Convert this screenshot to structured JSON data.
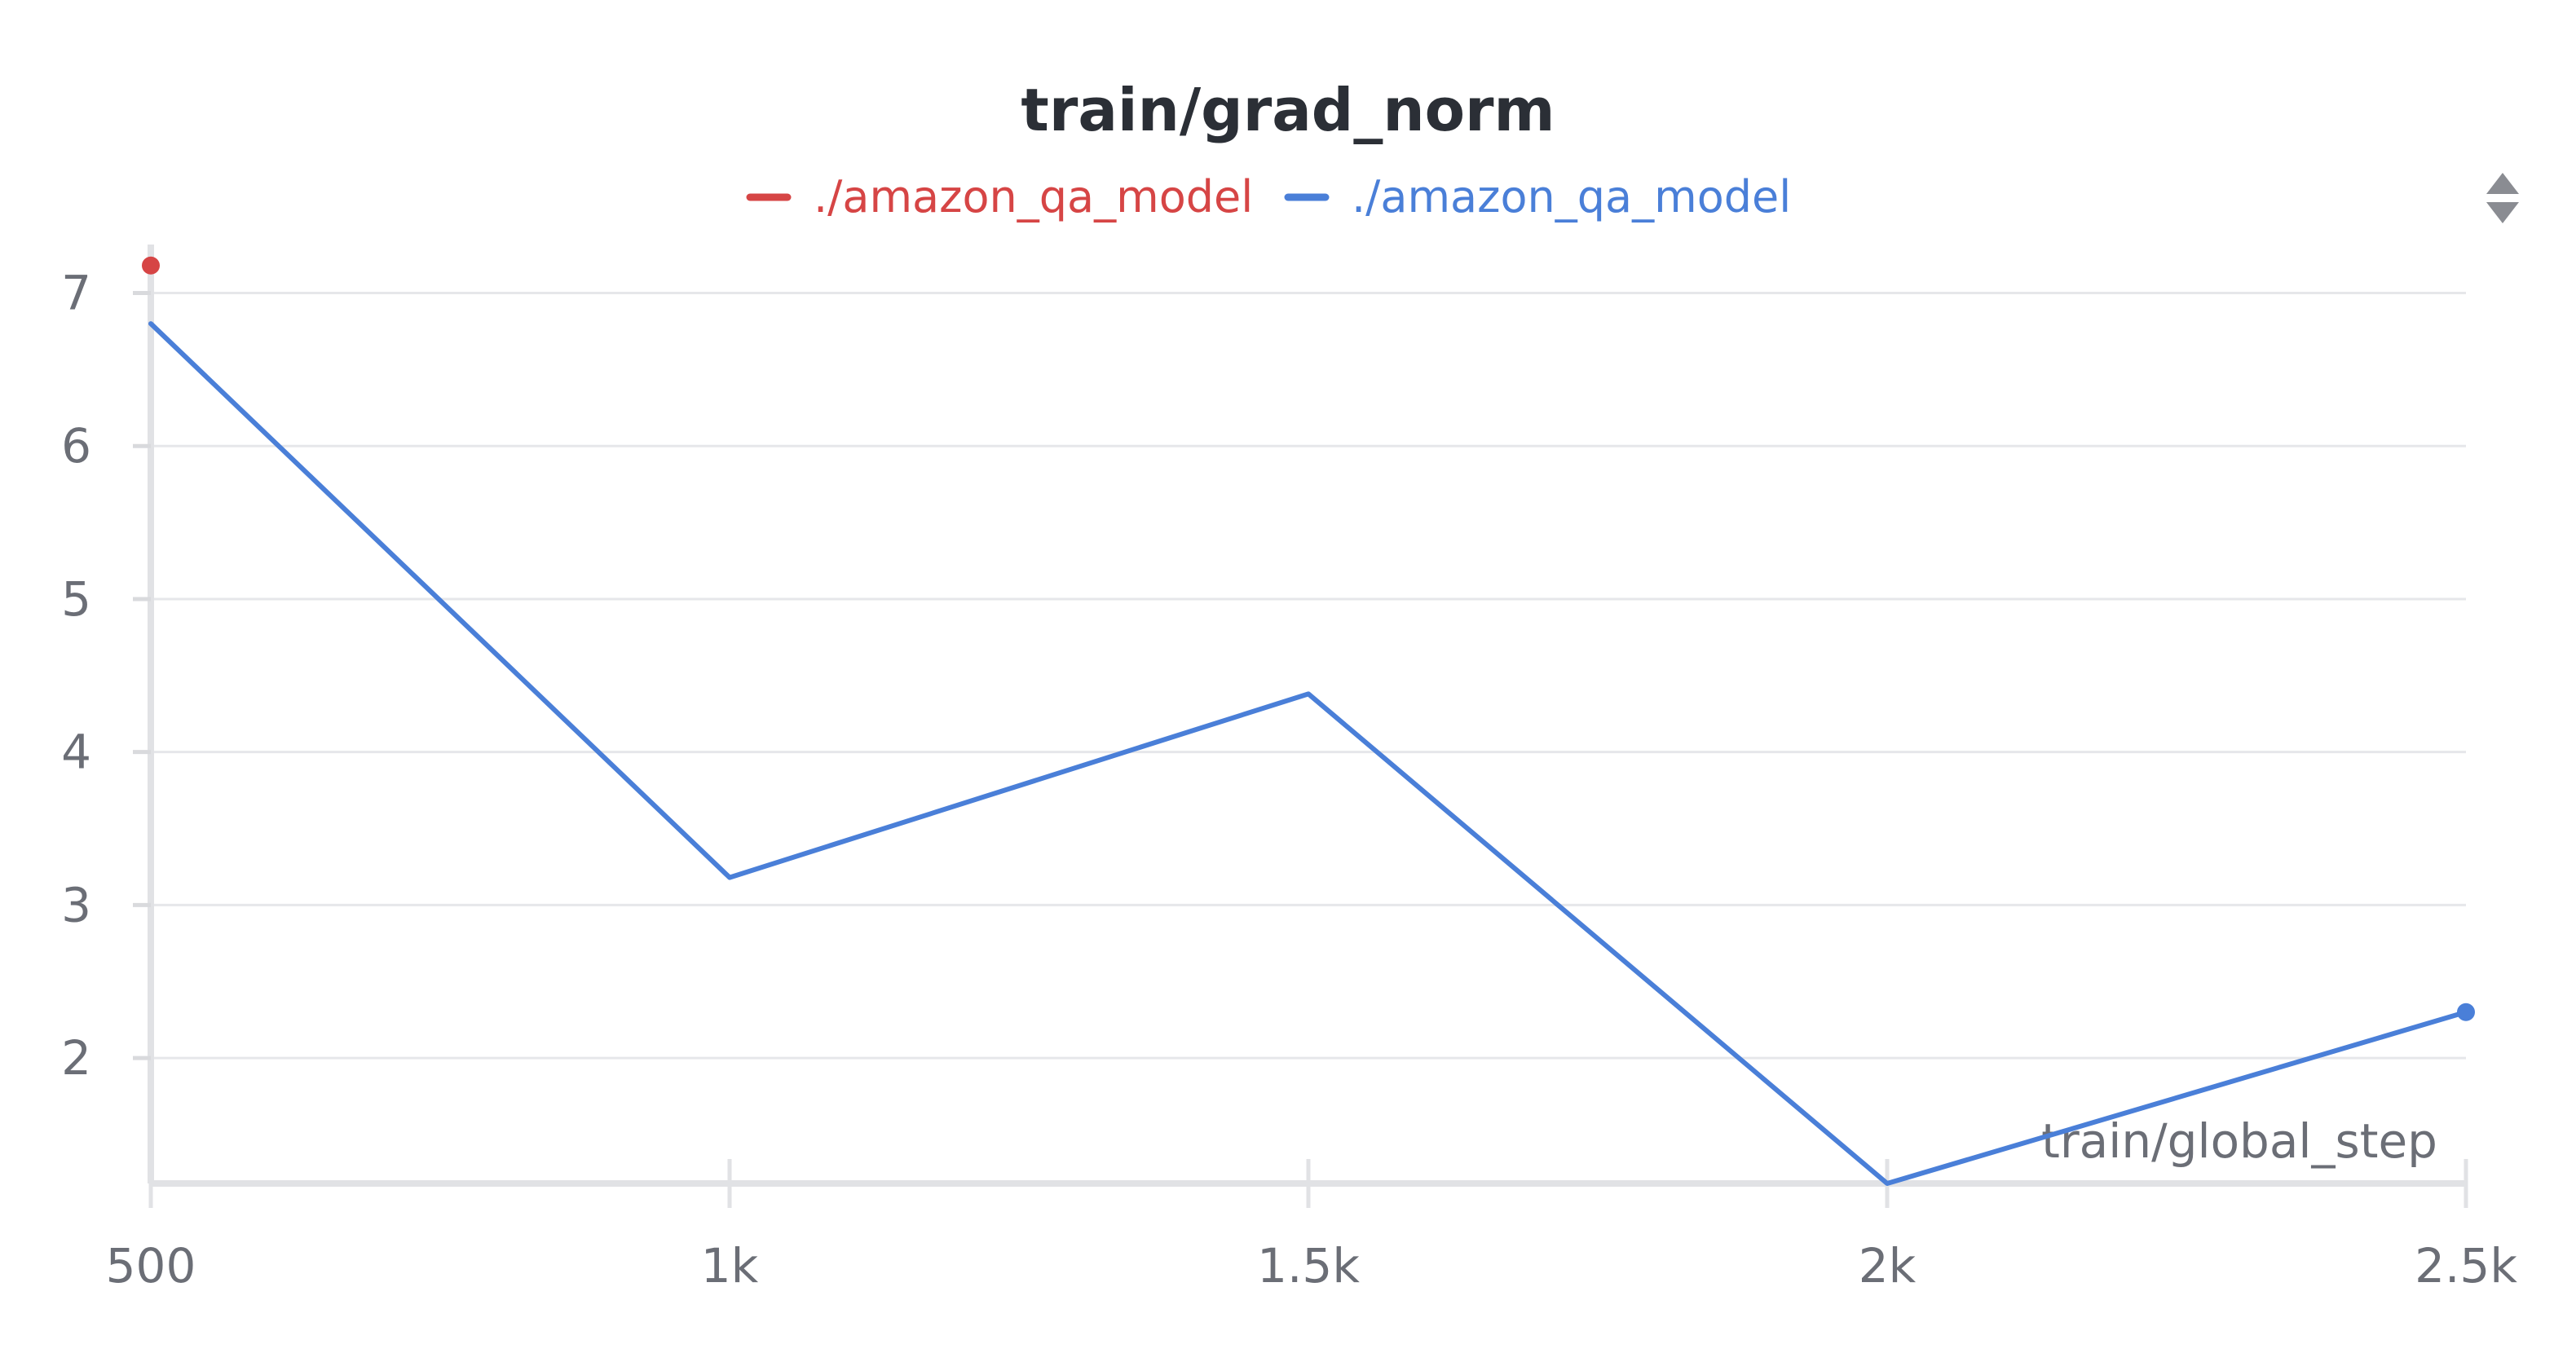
{
  "chart_data": {
    "type": "line",
    "title": "train/grad_norm",
    "xlabel": "train/global_step",
    "ylabel": "",
    "x_ticks": [
      {
        "value": 500,
        "label": "500"
      },
      {
        "value": 1000,
        "label": "1k"
      },
      {
        "value": 1500,
        "label": "1.5k"
      },
      {
        "value": 2000,
        "label": "2k"
      },
      {
        "value": 2500,
        "label": "2.5k"
      }
    ],
    "y_ticks": [
      {
        "value": 2,
        "label": "2"
      },
      {
        "value": 3,
        "label": "3"
      },
      {
        "value": 4,
        "label": "4"
      },
      {
        "value": 5,
        "label": "5"
      },
      {
        "value": 6,
        "label": "6"
      },
      {
        "value": 7,
        "label": "7"
      }
    ],
    "xlim": [
      500,
      2500
    ],
    "ylim": [
      1.18,
      7.2
    ],
    "grid": true,
    "legend_position": "top-center",
    "series": [
      {
        "name": "./amazon_qa_model",
        "color": "#d64545",
        "points": [
          {
            "x": 500,
            "y": 7.18
          }
        ]
      },
      {
        "name": "./amazon_qa_model",
        "color": "#4a7fd8",
        "points": [
          {
            "x": 500,
            "y": 6.8
          },
          {
            "x": 1000,
            "y": 3.18
          },
          {
            "x": 1500,
            "y": 4.38
          },
          {
            "x": 2000,
            "y": 1.18
          },
          {
            "x": 2500,
            "y": 2.3
          }
        ]
      }
    ]
  }
}
